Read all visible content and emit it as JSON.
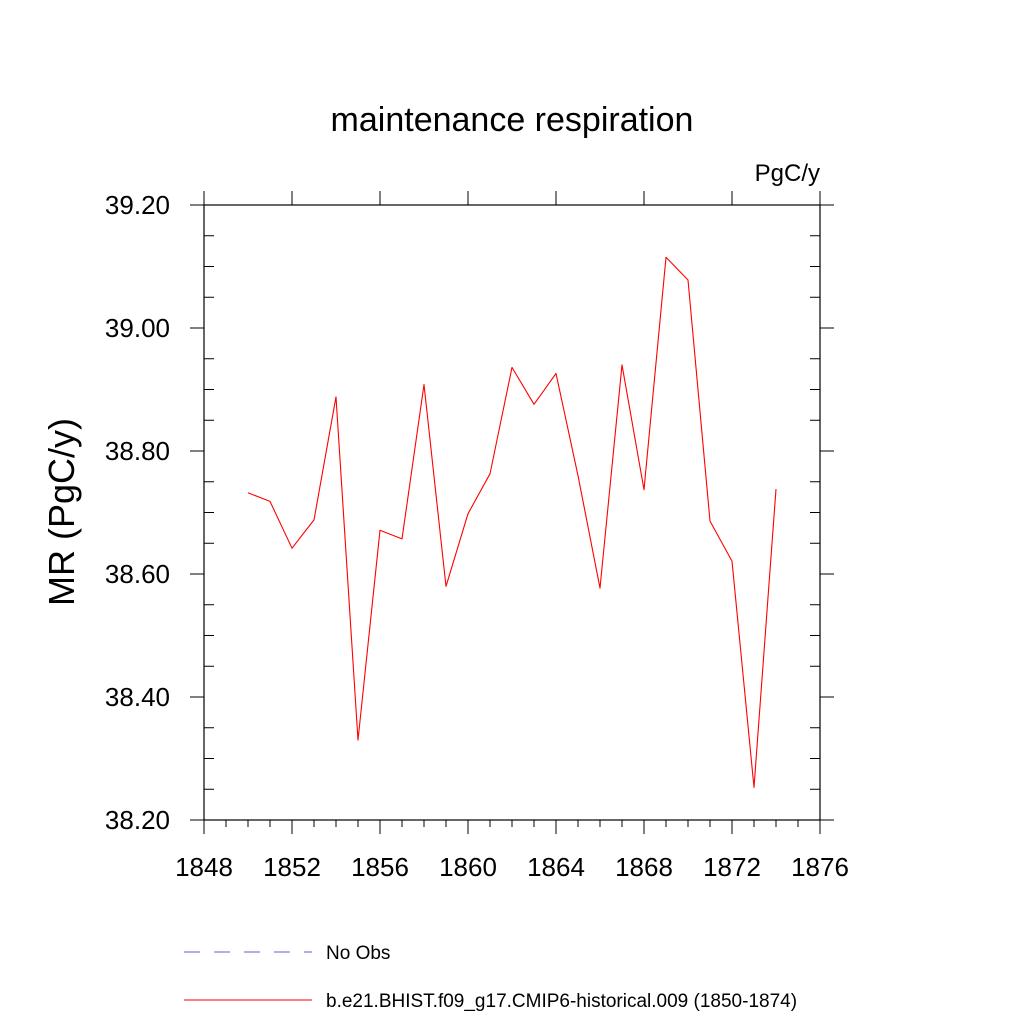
{
  "chart_data": {
    "type": "line",
    "title": "maintenance respiration",
    "units_label": "PgC/y",
    "xlabel": "",
    "ylabel": "MR  (PgC/y)",
    "xlim": [
      1848,
      1876
    ],
    "ylim": [
      38.2,
      39.2
    ],
    "x_ticks": [
      1848,
      1852,
      1856,
      1860,
      1864,
      1868,
      1872,
      1876
    ],
    "x_tick_labels": [
      "1848",
      "1852",
      "1856",
      "1860",
      "1864",
      "1868",
      "1872",
      "1876"
    ],
    "y_ticks": [
      38.2,
      38.4,
      38.6,
      38.8,
      39.0,
      39.2
    ],
    "y_tick_labels": [
      "38.20",
      "38.40",
      "38.60",
      "38.80",
      "39.00",
      "39.20"
    ],
    "x_minor_step": 1,
    "y_minor_step": 0.05,
    "grid": false,
    "legend_position": "bottom",
    "series": [
      {
        "name": "b.e21.BHIST.f09_g17.CMIP6-historical.009 (1850-1874)",
        "color": "#ff0000",
        "dash": "solid",
        "x": [
          1850,
          1851,
          1852,
          1853,
          1854,
          1855,
          1856,
          1857,
          1858,
          1859,
          1860,
          1861,
          1862,
          1863,
          1864,
          1865,
          1866,
          1867,
          1868,
          1869,
          1870,
          1871,
          1872,
          1873,
          1874
        ],
        "values": [
          38.732,
          38.718,
          38.642,
          38.688,
          38.888,
          38.33,
          38.671,
          38.657,
          38.908,
          38.58,
          38.698,
          38.763,
          38.936,
          38.876,
          38.926,
          38.76,
          38.577,
          38.94,
          38.737,
          39.115,
          39.078,
          38.686,
          38.621,
          38.253,
          38.738
        ]
      }
    ],
    "legend": [
      {
        "label": "No Obs",
        "color": "#6a5acd",
        "dash": "dashed"
      },
      {
        "label": "b.e21.BHIST.f09_g17.CMIP6-historical.009 (1850-1874)",
        "color": "#ff0000",
        "dash": "solid"
      }
    ]
  }
}
